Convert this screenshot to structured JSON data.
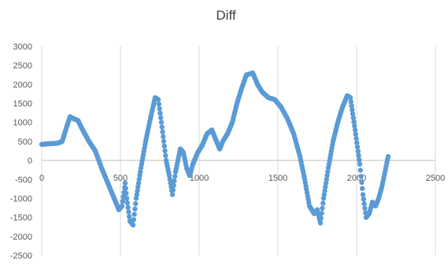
{
  "chart_data": {
    "type": "scatter",
    "title": "Diff",
    "xlabel": "",
    "ylabel": "",
    "xlim": [
      0,
      2500
    ],
    "ylim": [
      -2500,
      3000
    ],
    "x_ticks": [
      0,
      500,
      1000,
      1500,
      2000,
      2500
    ],
    "y_ticks": [
      3000,
      2500,
      2000,
      1500,
      1000,
      500,
      0,
      -500,
      -1000,
      -1500,
      -2000,
      -2500
    ],
    "grid": "vertical",
    "legend": "none",
    "marker_color": "#5b9bd5",
    "series": [
      {
        "values": [
          [
            0,
            420
          ],
          [
            50,
            440
          ],
          [
            100,
            450
          ],
          [
            130,
            500
          ],
          [
            160,
            900
          ],
          [
            180,
            1150
          ],
          [
            200,
            1100
          ],
          [
            230,
            1050
          ],
          [
            260,
            800
          ],
          [
            300,
            500
          ],
          [
            340,
            250
          ],
          [
            380,
            -200
          ],
          [
            420,
            -600
          ],
          [
            460,
            -1000
          ],
          [
            490,
            -1300
          ],
          [
            510,
            -1200
          ],
          [
            530,
            -600
          ],
          [
            540,
            -1000
          ],
          [
            560,
            -1600
          ],
          [
            580,
            -1700
          ],
          [
            600,
            -1000
          ],
          [
            630,
            -200
          ],
          [
            660,
            500
          ],
          [
            690,
            1100
          ],
          [
            720,
            1650
          ],
          [
            740,
            1600
          ],
          [
            760,
            1000
          ],
          [
            790,
            0
          ],
          [
            810,
            -400
          ],
          [
            830,
            -900
          ],
          [
            850,
            -300
          ],
          [
            880,
            300
          ],
          [
            900,
            200
          ],
          [
            920,
            -200
          ],
          [
            940,
            -400
          ],
          [
            960,
            -100
          ],
          [
            990,
            200
          ],
          [
            1020,
            400
          ],
          [
            1050,
            700
          ],
          [
            1080,
            800
          ],
          [
            1110,
            500
          ],
          [
            1130,
            300
          ],
          [
            1150,
            500
          ],
          [
            1180,
            700
          ],
          [
            1210,
            1000
          ],
          [
            1240,
            1500
          ],
          [
            1270,
            1900
          ],
          [
            1300,
            2250
          ],
          [
            1340,
            2300
          ],
          [
            1370,
            2000
          ],
          [
            1400,
            1800
          ],
          [
            1440,
            1650
          ],
          [
            1480,
            1600
          ],
          [
            1520,
            1400
          ],
          [
            1560,
            1100
          ],
          [
            1600,
            700
          ],
          [
            1640,
            100
          ],
          [
            1670,
            -500
          ],
          [
            1700,
            -1200
          ],
          [
            1730,
            -1400
          ],
          [
            1750,
            -1300
          ],
          [
            1770,
            -1650
          ],
          [
            1790,
            -1000
          ],
          [
            1820,
            -200
          ],
          [
            1850,
            500
          ],
          [
            1880,
            1000
          ],
          [
            1910,
            1400
          ],
          [
            1940,
            1700
          ],
          [
            1960,
            1650
          ],
          [
            1990,
            800
          ],
          [
            2020,
            -100
          ],
          [
            2040,
            -900
          ],
          [
            2060,
            -1500
          ],
          [
            2080,
            -1400
          ],
          [
            2100,
            -1100
          ],
          [
            2120,
            -1200
          ],
          [
            2140,
            -1000
          ],
          [
            2160,
            -700
          ],
          [
            2180,
            -300
          ],
          [
            2200,
            100
          ]
        ]
      }
    ]
  }
}
